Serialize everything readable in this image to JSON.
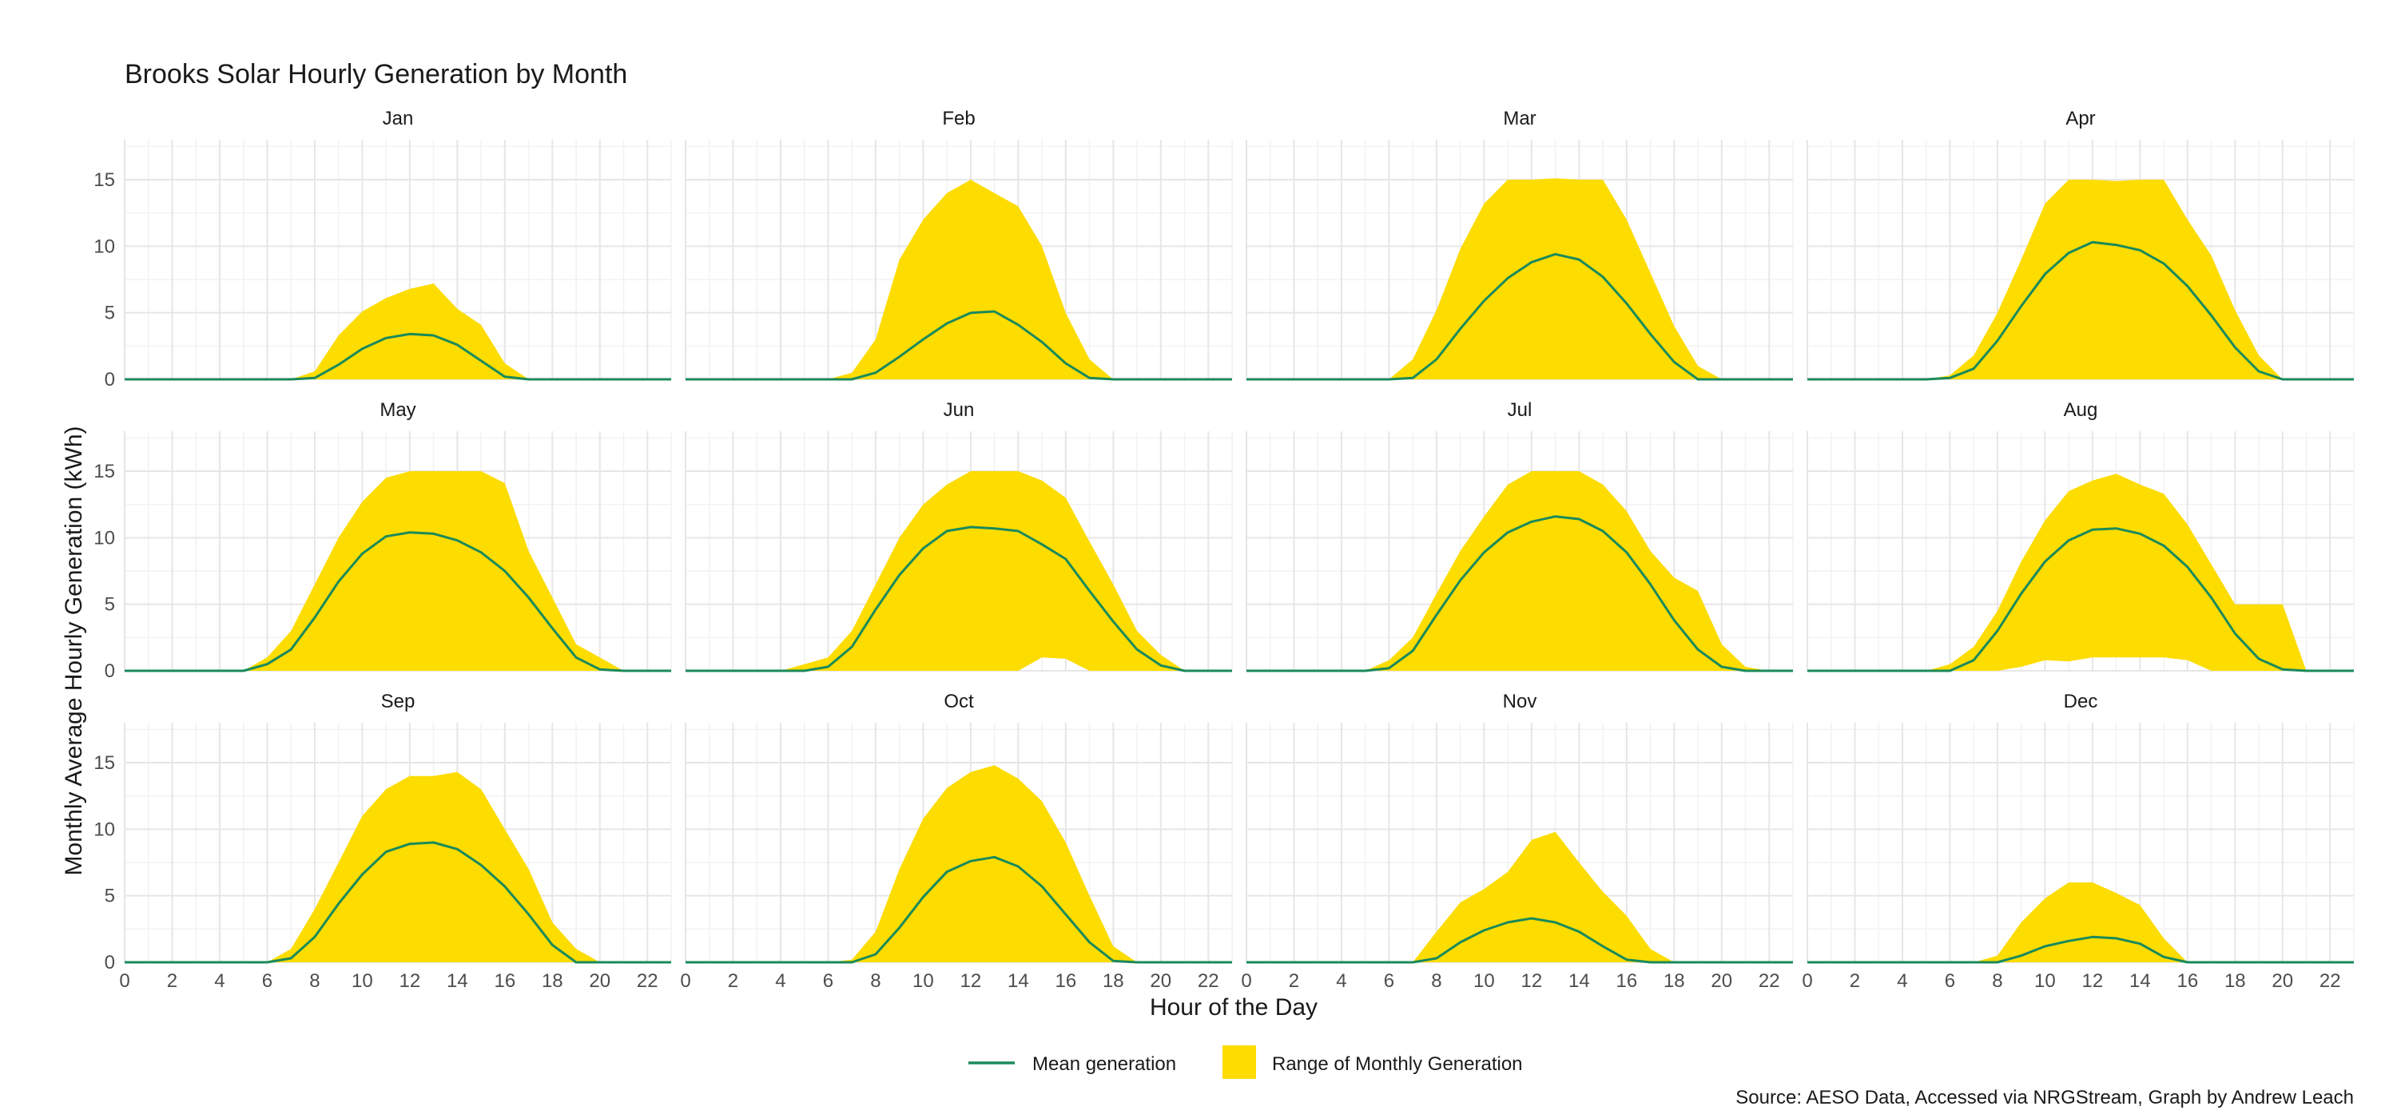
{
  "chart_data": {
    "type": "area",
    "title": "Brooks Solar Hourly Generation by Month",
    "xlabel": "Hour of the Day",
    "ylabel": "Monthly Average Hourly Generation (kWh)",
    "caption": "Source: AESO Data, Accessed via NRGStream, Graph by Andrew Leach",
    "x_ticks": [
      0,
      2,
      4,
      6,
      8,
      10,
      12,
      14,
      16,
      18,
      20,
      22
    ],
    "y_ticks": [
      0,
      5,
      10,
      15
    ],
    "xlim": [
      0,
      23
    ],
    "ylim": [
      0,
      18
    ],
    "grid": true,
    "layout": "3 rows x 4 columns facets",
    "legend": {
      "placement": "bottom",
      "items": [
        {
          "label": "Mean generation",
          "type": "line",
          "color": "#1a8a5a"
        },
        {
          "label": "Range of Monthly Generation",
          "type": "area",
          "color": "#FDDC00"
        }
      ]
    },
    "colors": {
      "range_fill": "#FDDC00",
      "mean_line": "#1a8a5a",
      "grid": "#ebebeb"
    },
    "x": [
      0,
      1,
      2,
      3,
      4,
      5,
      6,
      7,
      8,
      9,
      10,
      11,
      12,
      13,
      14,
      15,
      16,
      17,
      18,
      19,
      20,
      21,
      22,
      23
    ],
    "panels": [
      {
        "month": "Jan",
        "mean": [
          0,
          0,
          0,
          0,
          0,
          0,
          0,
          0,
          0.1,
          1.1,
          2.3,
          3.1,
          3.4,
          3.3,
          2.6,
          1.4,
          0.2,
          0,
          0,
          0,
          0,
          0,
          0,
          0
        ],
        "max": [
          0,
          0,
          0,
          0,
          0,
          0,
          0,
          0,
          0.6,
          3.3,
          5.1,
          6.1,
          6.8,
          7.2,
          5.3,
          4.1,
          1.2,
          0,
          0,
          0,
          0,
          0,
          0,
          0
        ],
        "min": [
          0,
          0,
          0,
          0,
          0,
          0,
          0,
          0,
          0,
          0,
          0,
          0,
          0,
          0,
          0,
          0,
          0,
          0,
          0,
          0,
          0,
          0,
          0,
          0
        ]
      },
      {
        "month": "Feb",
        "mean": [
          0,
          0,
          0,
          0,
          0,
          0,
          0,
          0,
          0.5,
          1.7,
          3.0,
          4.2,
          5.0,
          5.1,
          4.1,
          2.8,
          1.2,
          0.1,
          0,
          0,
          0,
          0,
          0,
          0
        ],
        "max": [
          0,
          0,
          0,
          0,
          0,
          0,
          0,
          0.5,
          3.0,
          9.0,
          12.0,
          14.0,
          15.0,
          14.0,
          13.0,
          10.0,
          5.0,
          1.5,
          0,
          0,
          0,
          0,
          0,
          0
        ],
        "min": [
          0,
          0,
          0,
          0,
          0,
          0,
          0,
          0,
          0,
          0,
          0,
          0,
          0,
          0,
          0,
          0,
          0,
          0,
          0,
          0,
          0,
          0,
          0,
          0
        ]
      },
      {
        "month": "Mar",
        "mean": [
          0,
          0,
          0,
          0,
          0,
          0,
          0,
          0.1,
          1.5,
          3.8,
          5.9,
          7.6,
          8.8,
          9.4,
          9.0,
          7.7,
          5.7,
          3.4,
          1.3,
          0,
          0,
          0,
          0,
          0
        ],
        "max": [
          0,
          0,
          0,
          0,
          0,
          0,
          0,
          1.5,
          5.2,
          9.8,
          13.2,
          15.0,
          15.0,
          15.1,
          15.0,
          15.0,
          12.0,
          8.0,
          4.0,
          1.0,
          0,
          0,
          0,
          0
        ],
        "min": [
          0,
          0,
          0,
          0,
          0,
          0,
          0,
          0,
          0,
          0,
          0,
          0,
          0,
          0,
          0,
          0,
          0,
          0,
          0,
          0,
          0,
          0,
          0,
          0
        ]
      },
      {
        "month": "Apr",
        "mean": [
          0,
          0,
          0,
          0,
          0,
          0,
          0.1,
          0.8,
          2.9,
          5.5,
          7.9,
          9.5,
          10.3,
          10.1,
          9.7,
          8.7,
          7.0,
          4.8,
          2.4,
          0.6,
          0,
          0,
          0,
          0
        ],
        "max": [
          0,
          0,
          0,
          0,
          0,
          0,
          0.3,
          1.8,
          5.0,
          9.0,
          13.2,
          15.0,
          15.0,
          14.9,
          15.0,
          15.0,
          12.0,
          9.3,
          5.2,
          1.8,
          0,
          0,
          0,
          0
        ],
        "min": [
          0,
          0,
          0,
          0,
          0,
          0,
          0,
          0,
          0,
          0,
          0,
          0,
          0,
          0,
          0,
          0,
          0,
          0,
          0,
          0,
          0,
          0,
          0,
          0
        ]
      },
      {
        "month": "May",
        "mean": [
          0,
          0,
          0,
          0,
          0,
          0,
          0.5,
          1.6,
          4.0,
          6.7,
          8.8,
          10.1,
          10.4,
          10.3,
          9.8,
          8.9,
          7.5,
          5.5,
          3.2,
          1.0,
          0.1,
          0,
          0,
          0
        ],
        "max": [
          0,
          0,
          0,
          0,
          0,
          0,
          1.0,
          3.0,
          6.5,
          10.0,
          12.7,
          14.5,
          15.0,
          15.0,
          15.0,
          15.0,
          14.1,
          9.0,
          5.5,
          2.0,
          1.0,
          0,
          0,
          0
        ],
        "min": [
          0,
          0,
          0,
          0,
          0,
          0,
          0,
          0,
          0,
          0,
          0,
          0,
          0,
          0,
          0,
          0,
          0,
          0,
          0,
          0,
          0,
          0,
          0,
          0
        ]
      },
      {
        "month": "Jun",
        "mean": [
          0,
          0,
          0,
          0,
          0,
          0,
          0.3,
          1.8,
          4.6,
          7.2,
          9.2,
          10.5,
          10.8,
          10.7,
          10.5,
          9.5,
          8.4,
          6.0,
          3.7,
          1.6,
          0.4,
          0,
          0,
          0
        ],
        "max": [
          0,
          0,
          0,
          0,
          0,
          0.5,
          1.0,
          3.0,
          6.5,
          10.0,
          12.5,
          14.0,
          15.0,
          15.0,
          15.0,
          14.3,
          13.0,
          9.7,
          6.5,
          3.0,
          1.2,
          0,
          0,
          0
        ],
        "min": [
          0,
          0,
          0,
          0,
          0,
          0,
          0,
          0,
          0,
          0,
          0,
          0,
          0,
          0,
          0,
          1.0,
          0.9,
          0,
          0,
          0,
          0,
          0,
          0,
          0
        ]
      },
      {
        "month": "Jul",
        "mean": [
          0,
          0,
          0,
          0,
          0,
          0,
          0.2,
          1.5,
          4.2,
          6.8,
          8.9,
          10.4,
          11.2,
          11.6,
          11.4,
          10.5,
          8.9,
          6.5,
          3.8,
          1.6,
          0.3,
          0,
          0,
          0
        ],
        "max": [
          0,
          0,
          0,
          0,
          0,
          0,
          0.8,
          2.5,
          5.8,
          9.0,
          11.6,
          14.0,
          15.0,
          15.0,
          15.0,
          14.0,
          12.0,
          9.0,
          7.0,
          6.0,
          2.0,
          0.3,
          0,
          0
        ],
        "min": [
          0,
          0,
          0,
          0,
          0,
          0,
          0,
          0,
          0,
          0,
          0,
          0,
          0,
          0,
          0,
          0,
          0,
          0,
          0,
          0,
          0,
          0,
          0,
          0
        ]
      },
      {
        "month": "Aug",
        "mean": [
          0,
          0,
          0,
          0,
          0,
          0,
          0,
          0.8,
          3.0,
          5.8,
          8.2,
          9.8,
          10.6,
          10.7,
          10.3,
          9.4,
          7.8,
          5.5,
          2.8,
          0.9,
          0.1,
          0,
          0,
          0
        ],
        "max": [
          0,
          0,
          0,
          0,
          0,
          0,
          0.5,
          1.8,
          4.5,
          8.2,
          11.3,
          13.5,
          14.3,
          14.8,
          14.0,
          13.3,
          11.0,
          8.0,
          5.0,
          5.0,
          5.0,
          0,
          0,
          0
        ],
        "min": [
          0,
          0,
          0,
          0,
          0,
          0,
          0,
          0,
          0,
          0.3,
          0.8,
          0.7,
          1.0,
          1.0,
          1.0,
          1.0,
          0.8,
          0,
          0,
          0,
          0,
          0,
          0,
          0
        ]
      },
      {
        "month": "Sep",
        "mean": [
          0,
          0,
          0,
          0,
          0,
          0,
          0,
          0.3,
          1.9,
          4.4,
          6.6,
          8.3,
          8.9,
          9.0,
          8.5,
          7.3,
          5.7,
          3.6,
          1.3,
          0,
          0,
          0,
          0,
          0
        ],
        "max": [
          0,
          0,
          0,
          0,
          0,
          0,
          0,
          1.0,
          4.0,
          7.5,
          11.0,
          13.0,
          14.0,
          14.0,
          14.3,
          13.0,
          10.0,
          7.0,
          3.0,
          1.0,
          0,
          0,
          0,
          0
        ],
        "min": [
          0,
          0,
          0,
          0,
          0,
          0,
          0,
          0,
          0,
          0,
          0,
          0,
          0,
          0,
          0,
          0,
          0,
          0,
          0,
          0,
          0,
          0,
          0,
          0
        ]
      },
      {
        "month": "Oct",
        "mean": [
          0,
          0,
          0,
          0,
          0,
          0,
          0,
          0,
          0.6,
          2.6,
          4.9,
          6.8,
          7.6,
          7.9,
          7.2,
          5.7,
          3.6,
          1.5,
          0.1,
          0,
          0,
          0,
          0,
          0
        ],
        "max": [
          0,
          0,
          0,
          0,
          0,
          0,
          0,
          0.2,
          2.3,
          7.0,
          10.8,
          13.1,
          14.3,
          14.8,
          13.8,
          12.1,
          9.0,
          5.0,
          1.2,
          0,
          0,
          0,
          0,
          0
        ],
        "min": [
          0,
          0,
          0,
          0,
          0,
          0,
          0,
          0,
          0,
          0,
          0,
          0,
          0,
          0,
          0,
          0,
          0,
          0,
          0,
          0,
          0,
          0,
          0,
          0
        ]
      },
      {
        "month": "Nov",
        "mean": [
          0,
          0,
          0,
          0,
          0,
          0,
          0,
          0,
          0.3,
          1.5,
          2.4,
          3.0,
          3.3,
          3.0,
          2.3,
          1.2,
          0.2,
          0,
          0,
          0,
          0,
          0,
          0,
          0
        ],
        "max": [
          0,
          0,
          0,
          0,
          0,
          0,
          0,
          0,
          2.3,
          4.5,
          5.5,
          6.8,
          9.2,
          9.8,
          7.5,
          5.3,
          3.5,
          1.0,
          0,
          0,
          0,
          0,
          0,
          0
        ],
        "min": [
          0,
          0,
          0,
          0,
          0,
          0,
          0,
          0,
          0,
          0,
          0,
          0,
          0,
          0,
          0,
          0,
          0,
          0,
          0,
          0,
          0,
          0,
          0,
          0
        ]
      },
      {
        "month": "Dec",
        "mean": [
          0,
          0,
          0,
          0,
          0,
          0,
          0,
          0,
          0,
          0.5,
          1.2,
          1.6,
          1.9,
          1.8,
          1.4,
          0.4,
          0,
          0,
          0,
          0,
          0,
          0,
          0,
          0
        ],
        "max": [
          0,
          0,
          0,
          0,
          0,
          0,
          0,
          0,
          0.5,
          3.0,
          4.8,
          6.0,
          6.0,
          5.2,
          4.3,
          1.8,
          0,
          0,
          0,
          0,
          0,
          0,
          0,
          0
        ],
        "min": [
          0,
          0,
          0,
          0,
          0,
          0,
          0,
          0,
          0,
          0,
          0,
          0,
          0,
          0,
          0,
          0,
          0,
          0,
          0,
          0,
          0,
          0,
          0,
          0
        ]
      }
    ]
  }
}
